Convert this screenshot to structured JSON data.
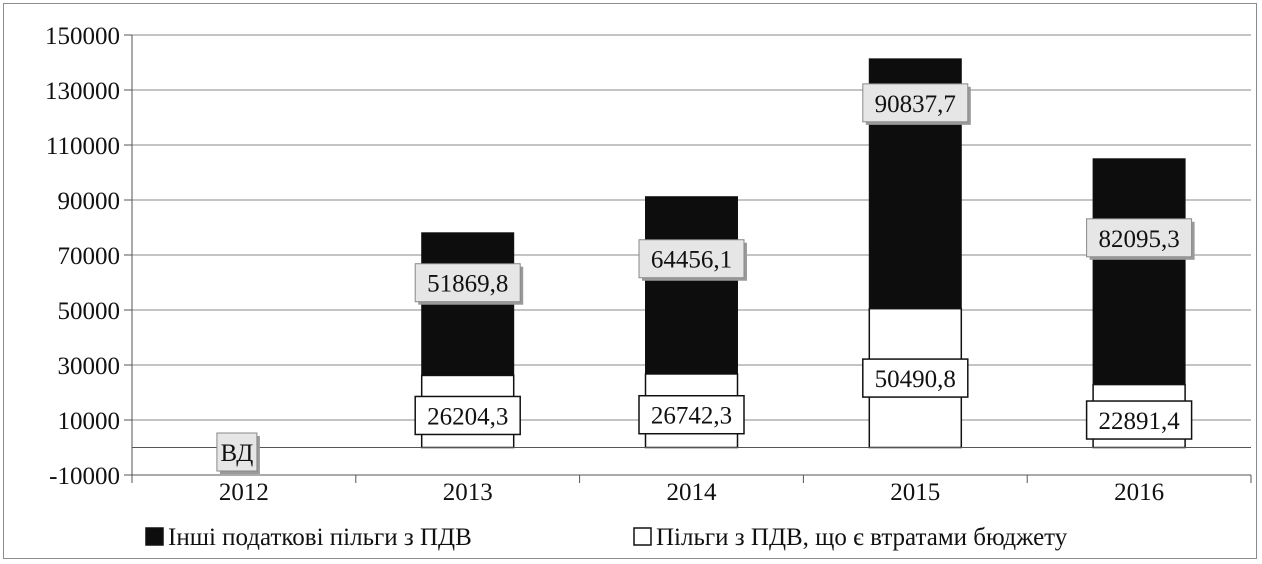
{
  "chart_data": {
    "type": "bar",
    "stacked": true,
    "categories": [
      "2012",
      "2013",
      "2014",
      "2015",
      "2016"
    ],
    "series": [
      {
        "name": "Пільги з ПДВ, що є втратами бюджету",
        "values": [
          null,
          26204.3,
          26742.3,
          50490.8,
          22891.4
        ],
        "labels": [
          "ВД",
          "26204,3",
          "26742,3",
          "50490,8",
          "22891,4"
        ],
        "color": "#ffffff"
      },
      {
        "name": "Інші податкові пільги з ПДВ",
        "values": [
          null,
          51869.8,
          64456.1,
          90837.7,
          82095.3
        ],
        "labels": [
          "",
          "51869,8",
          "64456,1",
          "90837,7",
          "82095,3"
        ],
        "color": "#0d0d0d"
      }
    ],
    "legend_order": [
      1,
      0
    ],
    "yticks": [
      "150000",
      "130000",
      "110000",
      "90000",
      "70000",
      "50000",
      "30000",
      "10000",
      "-10000"
    ],
    "ylim": [
      -10000,
      150000
    ],
    "grid": true,
    "legend_position": "bottom"
  }
}
